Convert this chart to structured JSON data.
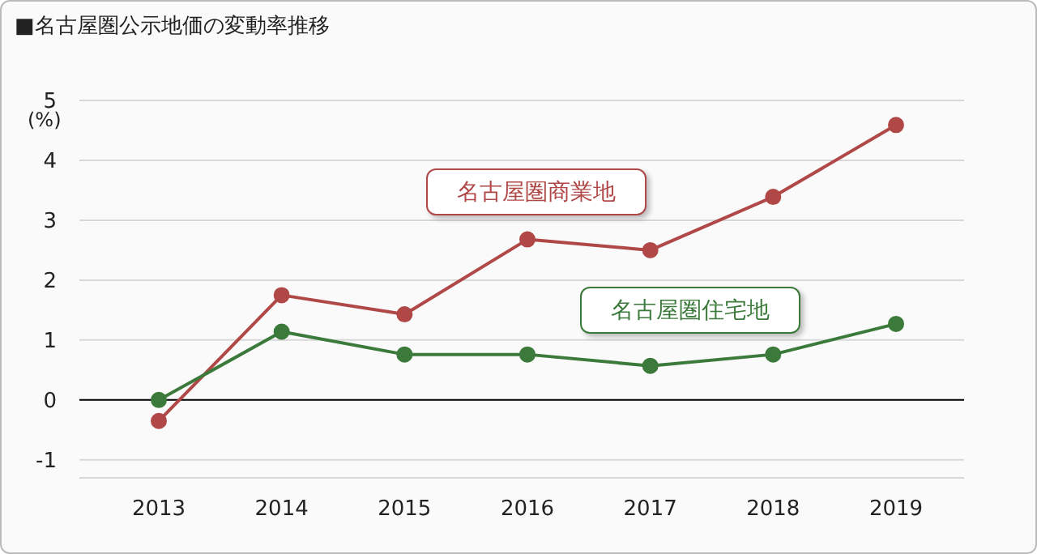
{
  "chart_data": {
    "type": "line",
    "title": "■名古屋圏公示地価の変動率推移",
    "ylabel": "(%)",
    "categories": [
      "2013",
      "2014",
      "2015",
      "2016",
      "2017",
      "2018",
      "2019"
    ],
    "series": [
      {
        "name": "名古屋圏商業地",
        "color": "#b04848",
        "values": [
          -0.35,
          1.75,
          1.43,
          2.68,
          2.5,
          3.39,
          4.59
        ]
      },
      {
        "name": "名古屋圏住宅地",
        "color": "#3c7a3c",
        "values": [
          0,
          1.14,
          0.76,
          0.76,
          0.57,
          0.76,
          1.27
        ]
      }
    ],
    "ylim": [
      -1.3,
      5
    ],
    "yticks": [
      -1,
      0,
      1,
      2,
      3,
      4,
      5
    ],
    "grid": "y",
    "marker": "circle",
    "line_style": "solid",
    "ref_lines": [
      {
        "axis": "y",
        "value": 0,
        "color": "#000000"
      }
    ]
  }
}
